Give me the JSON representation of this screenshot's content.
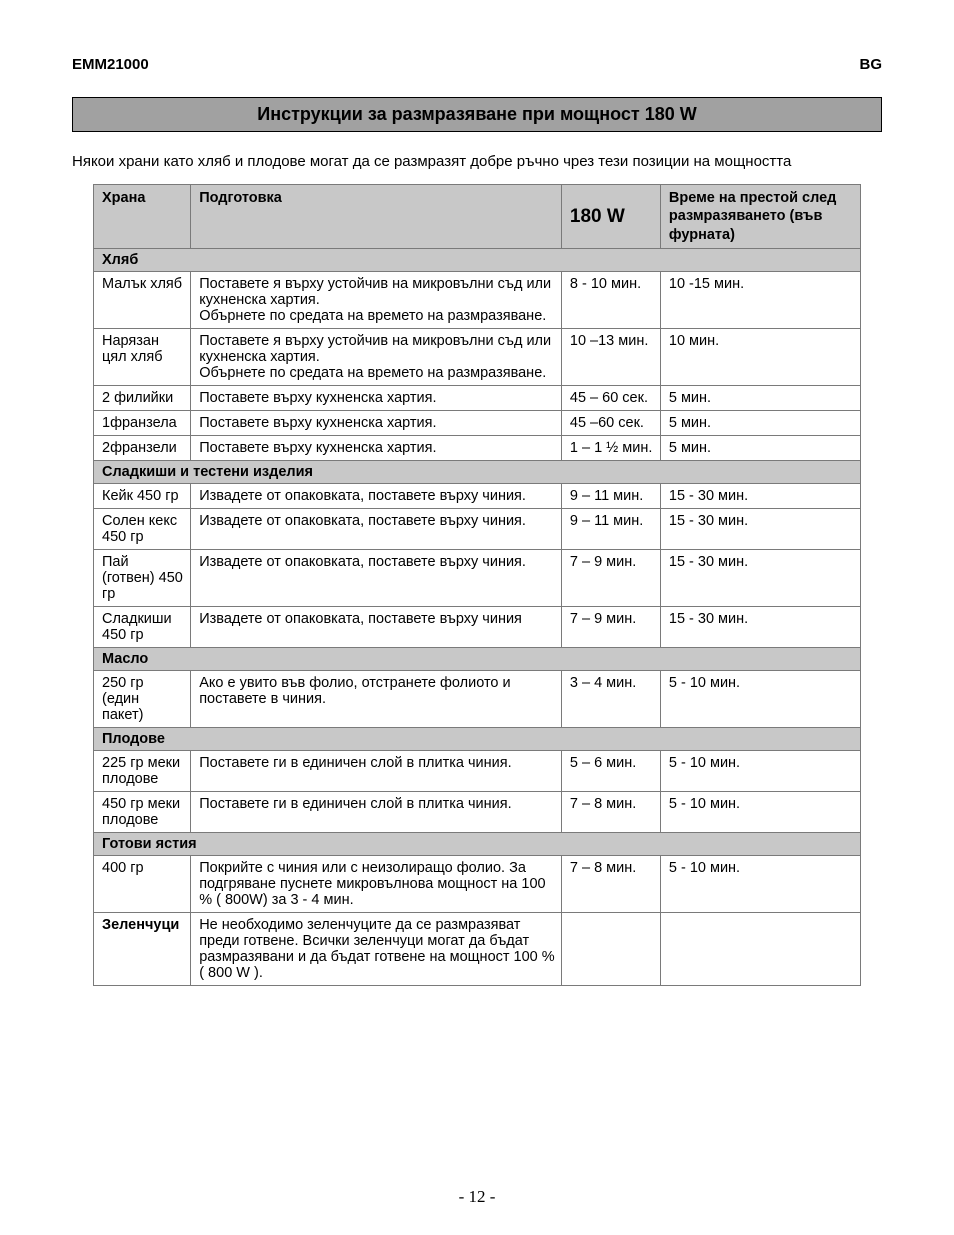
{
  "header": {
    "model": "EMM21000",
    "lang": "BG"
  },
  "title": "Инструкции за размразяване при мощност 180 W",
  "intro": "Някои храни като хляб и плодове могат да се размразят добре ръчно чрез тези позиции на мощността",
  "columns": {
    "food": "Храна",
    "prep": "Подготовка",
    "power": "180 W",
    "stand": "Време на престой след размразяването (във фурната)"
  },
  "sections": [
    {
      "title": "Хляб",
      "rows": [
        {
          "food": "Малък хляб",
          "prep": "Поставете я върху устойчив на микровълни съд или кухненска хартия.\nОбърнете по средата на времето на размразяване.",
          "power": "8 - 10 мин.",
          "stand": "10 -15 мин."
        },
        {
          "food": "Нарязан цял хляб",
          "prep": "Поставете я върху устойчив на микровълни съд или кухненска хартия.\nОбърнете по средата на времето на размразяване.",
          "power": "10 –13 мин.",
          "stand": "10 мин."
        },
        {
          "food": "2 филийки",
          "prep": "Поставете върху кухненска хартия.",
          "power": "45 – 60 сек.",
          "stand": "5 мин."
        },
        {
          "food": "1франзела",
          "prep": "Поставете върху кухненска хартия.",
          "power": "45 –60 сек.",
          "stand": "5 мин."
        },
        {
          "food": "2франзели",
          "prep": "Поставете върху кухненска хартия.",
          "power": "1 – 1 ½ мин.",
          "stand": "5 мин."
        }
      ]
    },
    {
      "title": "Сладкиши и тестени изделия",
      "rows": [
        {
          "food": "Кейк 450 гр",
          "prep": "Извадете от опаковката, поставете върху чиния.",
          "power": "9 – 11 мин.",
          "stand": "15 - 30 мин."
        },
        {
          "food": "Солен кекс 450 гр",
          "prep": "Извадете от опаковката, поставете върху чиния.",
          "power": "9 – 11 мин.",
          "stand": "15 - 30 мин."
        },
        {
          "food": "Пай (готвен) 450 гр",
          "prep": "Извадете от опаковката, поставете върху чиния.",
          "power": "7 – 9 мин.",
          "stand": "15 - 30 мин."
        },
        {
          "food": "Сладкиши 450 гр",
          "prep": "Извадете от опаковката, поставете върху чиния",
          "power": "7 – 9 мин.",
          "stand": "15 - 30 мин."
        }
      ]
    },
    {
      "title": "Масло",
      "rows": [
        {
          "food": "250 гр (един пакет)",
          "prep": "Ако е увито във фолио, отстранете фолиото и поставете в чиния.",
          "power": "3 – 4 мин.",
          "stand": "5 - 10 мин."
        }
      ]
    },
    {
      "title": "Плодове",
      "rows": [
        {
          "food": "225 гр меки плодове",
          "prep": "Поставете ги в единичен слой в плитка чиния.",
          "power": "5 – 6 мин.",
          "stand": "5 - 10 мин."
        },
        {
          "food": "450 гр меки плодове",
          "prep": "Поставете ги в единичен слой в плитка  чиния.",
          "power": "7 – 8 мин.",
          "stand": "5 - 10 мин."
        }
      ]
    },
    {
      "title": "Готови ястия",
      "rows": [
        {
          "food": "400 гр",
          "prep": "Покрийте с чиния или с неизолиращо фолио. За подгряване пуснете микровълнова мощност на 100 % ( 800W) за 3 - 4 мин.",
          "power": "7 – 8 мин.",
          "stand": "5 - 10 мин."
        },
        {
          "food": "Зеленчуци",
          "food_bold": true,
          "prep": "Не необходимо зеленчуците да се размразяват преди готвене. Всички зеленчуци могат да бъдат размразявани и да бъдат готвене на мощност 100 % ( 800 W ).",
          "power": "",
          "stand": ""
        }
      ]
    }
  ],
  "page_number": "- 12 -",
  "colors": {
    "section_bg": "#c8c8c8",
    "title_bg": "#a1a1a1",
    "border": "#7a7a7a",
    "text": "#000000",
    "page_bg": "#ffffff"
  }
}
